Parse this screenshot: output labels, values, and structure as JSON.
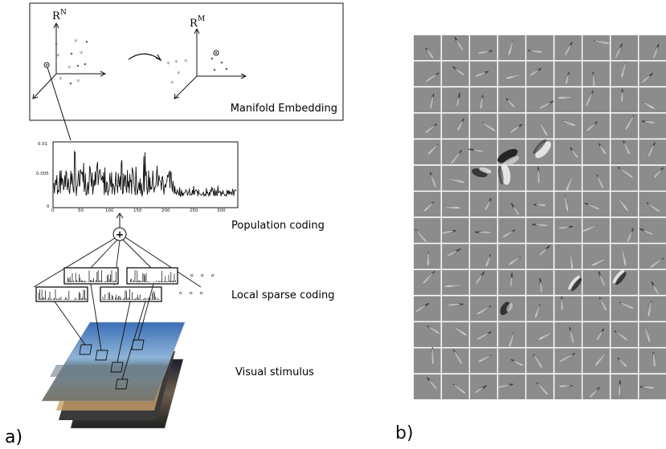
{
  "panel_a": {
    "label": "a)",
    "manifold": {
      "space_left": "R",
      "space_left_sup": "N",
      "space_right": "R",
      "space_right_sup": "M",
      "caption": "Manifold Embedding"
    },
    "population_plot": {
      "y_ticks": [
        "0.01",
        "0.005",
        "0"
      ],
      "x_ticks": [
        "0",
        "50",
        "100",
        "150",
        "200",
        "250",
        "300"
      ],
      "caption": "Population coding"
    },
    "combiner_symbol": "+",
    "ellipsis": "° ° °",
    "local_caption": "Local sparse coding",
    "stimulus_caption": "Visual stimulus"
  },
  "panel_b": {
    "label": "b)",
    "grid": {
      "rows": 14,
      "cols": 9
    }
  },
  "colors": {
    "filter_bg": "#8c8c8c",
    "grid_line": "#ffffff",
    "ink": "#111111",
    "scatter_gray": "#888888"
  }
}
